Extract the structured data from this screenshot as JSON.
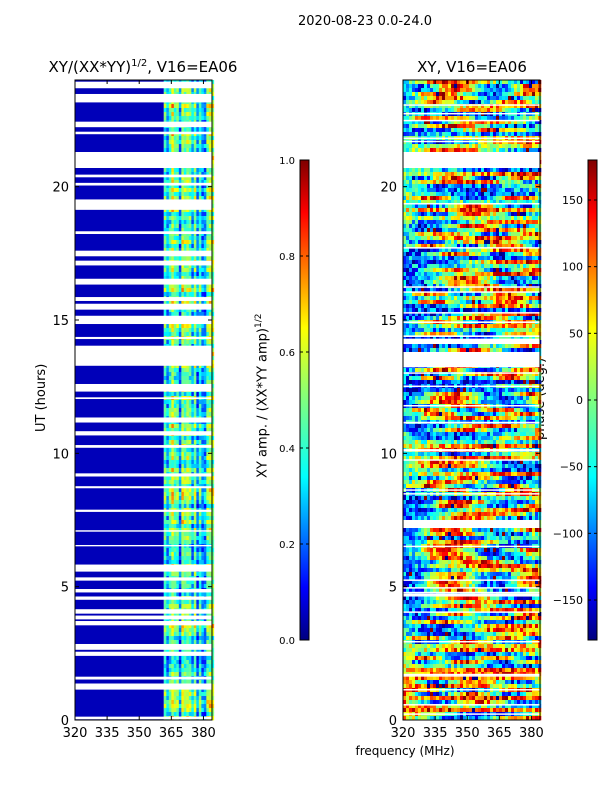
{
  "figure": {
    "suptitle": "2020-08-23 0.0-24.0",
    "xlabel": "frequency (MHz)"
  },
  "panels": {
    "left": {
      "title_text": "XY/(XX*YY)",
      "title_exponent": "1/2",
      "title_suffix": ", V16=EA06",
      "ylabel": "UT (hours)"
    },
    "right": {
      "title": "XY, V16=EA06"
    }
  },
  "colorbars": {
    "amplitude": {
      "label_text": "XY amp. / (XX*YY amp)",
      "label_exponent": "1/2"
    },
    "phase": {
      "label": "phase (deg.)"
    }
  },
  "chart_data": [
    {
      "type": "heatmap",
      "title": "XY/(XX*YY)^(1/2), V16=EA06",
      "xlabel": "frequency (MHz)",
      "ylabel": "UT (hours)",
      "xlim": [
        320,
        384
      ],
      "ylim": [
        0,
        24
      ],
      "xticks": [
        320,
        335,
        350,
        365,
        380
      ],
      "yticks": [
        0,
        5,
        10,
        15,
        20
      ],
      "colormap": "jet",
      "colorbar": {
        "label": "XY amp. / (XX*YY amp)^(1/2)",
        "range": [
          0.0,
          1.0
        ],
        "ticks": [
          "0.0",
          "0.2",
          "0.4",
          "0.6",
          "0.8",
          "1.0"
        ]
      },
      "flagged_bands_mhz": [
        [
          320,
          361.5
        ]
      ],
      "typical_values": {
        "flagged_band": 0.05,
        "unflagged_band": [
          0.2,
          0.7
        ]
      }
    },
    {
      "type": "heatmap",
      "title": "XY, V16=EA06",
      "xlabel": "frequency (MHz)",
      "ylabel": "",
      "xlim": [
        320,
        384
      ],
      "ylim": [
        0,
        24
      ],
      "xticks": [
        320,
        335,
        350,
        365,
        380
      ],
      "yticks": [
        0,
        5,
        10,
        15,
        20
      ],
      "colormap": "jet",
      "colorbar": {
        "label": "phase (deg.)",
        "range": [
          -180,
          180
        ],
        "ticks": [
          "150",
          "100",
          "50",
          "0",
          "−50",
          "−100",
          "−150"
        ]
      },
      "flagged_hours": [
        [
          7.2,
          7.5
        ],
        [
          13.3,
          13.8
        ],
        [
          14.1,
          14.3
        ],
        [
          20.7,
          21.3
        ]
      ]
    }
  ]
}
